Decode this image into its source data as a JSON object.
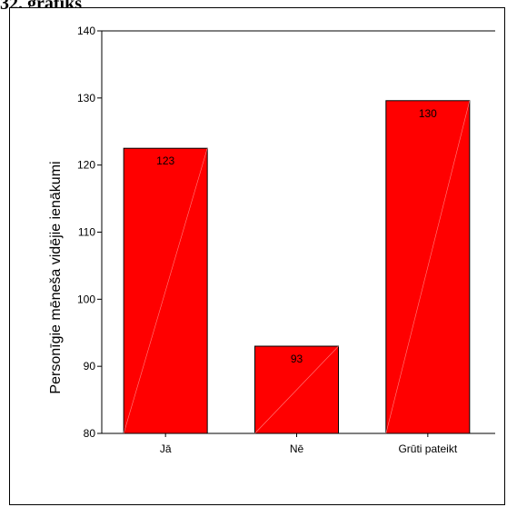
{
  "heading": "32. grafiks",
  "colors": {
    "bar": "#ff0000",
    "bar_stroke": "#000000",
    "axis": "#000000"
  },
  "chart_data": {
    "type": "bar",
    "categories": [
      "Jā",
      "Nē",
      "Grūti pateikt"
    ],
    "values": [
      122.5,
      93,
      129.6
    ],
    "data_labels": [
      "123",
      "93",
      "130"
    ],
    "title": "",
    "xlabel": "",
    "ylabel": "Personīgie mēneša vidējie ienākumi",
    "ylim": [
      80,
      140
    ],
    "yticks": [
      80,
      90,
      100,
      110,
      120,
      130,
      140
    ],
    "grid": false,
    "legend": "none"
  }
}
